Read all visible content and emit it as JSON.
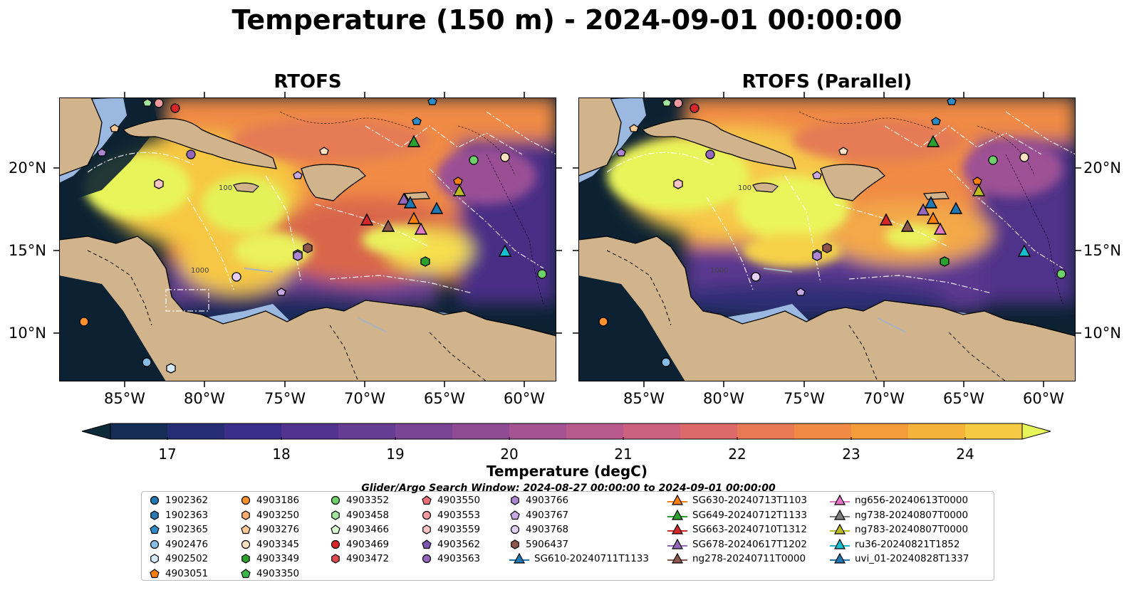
{
  "suptitle": "Temperature (150 m) - 2024-09-01 00:00:00",
  "panels": [
    {
      "title": "RTOFS"
    },
    {
      "title": "RTOFS (Parallel)"
    }
  ],
  "map": {
    "projection": "PlateCarree",
    "lon_range": [
      -89,
      -58
    ],
    "lat_range": [
      7,
      24.2
    ],
    "x_ticks": [
      "85°W",
      "80°W",
      "75°W",
      "70°W",
      "65°W",
      "60°W"
    ],
    "y_ticks": [
      "20°N",
      "15°N",
      "10°N"
    ],
    "contour_labels": [
      "100",
      "1000"
    ],
    "land_color": "#d2b48c",
    "shallow_color": "#9ab8e0",
    "deep_color": "#0c2232"
  },
  "colorbar": {
    "label": "Temperature (degC)",
    "ticks": [
      "17",
      "18",
      "19",
      "20",
      "21",
      "22",
      "23",
      "24"
    ],
    "range": [
      16.5,
      24.5
    ],
    "extend": "both",
    "colors": [
      "#0d2a3a",
      "#152c55",
      "#262d75",
      "#3b2e8a",
      "#52348f",
      "#653d93",
      "#7a4595",
      "#8f4c95",
      "#a55393",
      "#b95a8c",
      "#cc6180",
      "#dc6a6a",
      "#e87955",
      "#f18a44",
      "#f59c3a",
      "#f6b33a",
      "#f5cb45",
      "#e5f55a"
    ]
  },
  "legend": {
    "window_text": "Glider/Argo Search Window: 2024-08-27 00:00:00 to 2024-09-01 00:00:00",
    "columns": [
      [
        {
          "label": "1902362",
          "marker": "circle",
          "color": "#1f77b4"
        },
        {
          "label": "1902363",
          "marker": "hexagon",
          "color": "#2b78b0"
        },
        {
          "label": "1902365",
          "marker": "pentagon",
          "color": "#2d8cc8"
        },
        {
          "label": "4902476",
          "marker": "circle",
          "color": "#86bde5"
        },
        {
          "label": "4902502",
          "marker": "hexagon",
          "color": "#d6ecfa"
        },
        {
          "label": "4903051",
          "marker": "pentagon",
          "color": "#ff7f0e"
        }
      ],
      [
        {
          "label": "4903186",
          "marker": "circle",
          "color": "#ff902e"
        },
        {
          "label": "4903250",
          "marker": "hexagon",
          "color": "#ffad70"
        },
        {
          "label": "4903276",
          "marker": "pentagon",
          "color": "#ffc995"
        },
        {
          "label": "4903345",
          "marker": "circle",
          "color": "#ffe2c2"
        },
        {
          "label": "4903349",
          "marker": "hexagon",
          "color": "#2ca02c"
        },
        {
          "label": "4903350",
          "marker": "pentagon",
          "color": "#3cb84a"
        }
      ],
      [
        {
          "label": "4903352",
          "marker": "circle",
          "color": "#6ed06a"
        },
        {
          "label": "4903458",
          "marker": "hexagon",
          "color": "#a3e3a0"
        },
        {
          "label": "4903466",
          "marker": "pentagon",
          "color": "#d9f7cf"
        },
        {
          "label": "4903469",
          "marker": "circle",
          "color": "#d62728"
        },
        {
          "label": "4903472",
          "marker": "hexagon",
          "color": "#df4a4e"
        }
      ],
      [
        {
          "label": "4903550",
          "marker": "pentagon",
          "color": "#ea6f78"
        },
        {
          "label": "4903553",
          "marker": "circle",
          "color": "#f39aa0"
        },
        {
          "label": "4903559",
          "marker": "hexagon",
          "color": "#f8c4c4"
        },
        {
          "label": "4903562",
          "marker": "pentagon",
          "color": "#7b55b2"
        },
        {
          "label": "4903563",
          "marker": "circle",
          "color": "#9467bd"
        }
      ],
      [
        {
          "label": "4903766",
          "marker": "hexagon",
          "color": "#ad86d3"
        },
        {
          "label": "4903767",
          "marker": "pentagon",
          "color": "#c9a9e3"
        },
        {
          "label": "4903768",
          "marker": "circle",
          "color": "#e2cff2"
        },
        {
          "label": "5906437",
          "marker": "hexagon",
          "color": "#8c564b"
        },
        {
          "label": "SG610-20240711T1133",
          "marker": "triangle-line",
          "color": "#1f77b4"
        }
      ],
      [
        {
          "label": "SG630-20240713T1103",
          "marker": "triangle-line",
          "color": "#ff7f0e"
        },
        {
          "label": "SG649-20240712T1133",
          "marker": "triangle-line",
          "color": "#2ca02c"
        },
        {
          "label": "SG663-20240710T1312",
          "marker": "triangle-line",
          "color": "#d62728"
        },
        {
          "label": "SG678-20240617T1202",
          "marker": "triangle-line",
          "color": "#9467bd"
        },
        {
          "label": "ng278-20240711T0000",
          "marker": "triangle-line",
          "color": "#8c564b"
        }
      ],
      [
        {
          "label": "ng656-20240613T0000",
          "marker": "triangle-line",
          "color": "#e377c2"
        },
        {
          "label": "ng738-20240807T0000",
          "marker": "triangle-line",
          "color": "#7f7f7f"
        },
        {
          "label": "ng783-20240807T0000",
          "marker": "triangle-line",
          "color": "#bcbd22"
        },
        {
          "label": "ru36-20240821T1852",
          "marker": "triangle-line",
          "color": "#17becf"
        },
        {
          "label": "uvi_01-20240828T1337",
          "marker": "triangle-line",
          "color": "#1f77b4"
        }
      ]
    ]
  }
}
